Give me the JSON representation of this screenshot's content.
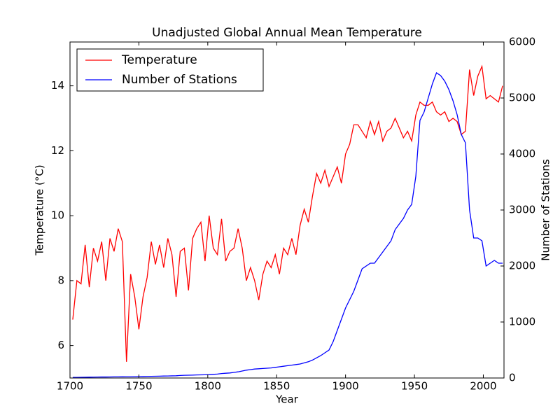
{
  "chart_data": {
    "type": "line",
    "title": "Unadjusted Global Annual Mean Temperature",
    "xlabel": "Year",
    "ylabel": "Temperature (°C)",
    "y2label": "Number of Stations",
    "x": [
      1702,
      1705,
      1708,
      1711,
      1714,
      1717,
      1720,
      1723,
      1726,
      1729,
      1732,
      1735,
      1738,
      1741,
      1744,
      1747,
      1750,
      1753,
      1756,
      1759,
      1762,
      1765,
      1768,
      1771,
      1774,
      1777,
      1780,
      1783,
      1786,
      1789,
      1792,
      1795,
      1798,
      1801,
      1804,
      1807,
      1810,
      1813,
      1816,
      1819,
      1822,
      1825,
      1828,
      1831,
      1834,
      1837,
      1840,
      1843,
      1846,
      1849,
      1852,
      1855,
      1858,
      1861,
      1864,
      1867,
      1870,
      1873,
      1876,
      1879,
      1882,
      1885,
      1888,
      1891,
      1894,
      1897,
      1900,
      1903,
      1906,
      1909,
      1912,
      1915,
      1918,
      1921,
      1924,
      1927,
      1930,
      1933,
      1936,
      1939,
      1942,
      1945,
      1948,
      1951,
      1954,
      1957,
      1960,
      1963,
      1966,
      1969,
      1972,
      1975,
      1978,
      1981,
      1984,
      1987,
      1990,
      1993,
      1996,
      1999,
      2002,
      2005,
      2008,
      2011,
      2014
    ],
    "series": [
      {
        "name": "Temperature",
        "color": "#ff0000",
        "axis": "y",
        "values": [
          6.8,
          8.0,
          7.9,
          9.1,
          7.8,
          9.0,
          8.6,
          9.2,
          8.0,
          9.3,
          8.9,
          9.6,
          9.2,
          5.5,
          8.2,
          7.5,
          6.5,
          7.5,
          8.1,
          9.2,
          8.5,
          9.1,
          8.4,
          9.3,
          8.8,
          7.5,
          8.9,
          9.0,
          7.7,
          9.3,
          9.6,
          9.8,
          8.6,
          10.0,
          9.0,
          8.8,
          9.9,
          8.6,
          8.9,
          9.0,
          9.6,
          9.0,
          8.0,
          8.4,
          8.0,
          7.4,
          8.2,
          8.6,
          8.4,
          8.8,
          8.2,
          9.0,
          8.8,
          9.3,
          8.8,
          9.7,
          10.2,
          9.8,
          10.6,
          11.3,
          11.0,
          11.4,
          10.9,
          11.2,
          11.5,
          11.0,
          11.9,
          12.2,
          12.8,
          12.8,
          12.6,
          12.4,
          12.9,
          12.5,
          12.9,
          12.3,
          12.6,
          12.7,
          13.0,
          12.7,
          12.4,
          12.6,
          12.3,
          13.1,
          13.5,
          13.4,
          13.4,
          13.5,
          13.2,
          13.1,
          13.2,
          12.9,
          13.0,
          12.9,
          12.5,
          12.6,
          14.5,
          13.7,
          14.3,
          14.6,
          13.6,
          13.7,
          13.6,
          13.5,
          14.0
        ]
      },
      {
        "name": "Number of Stations",
        "color": "#0000ff",
        "axis": "y2",
        "values": [
          10,
          10,
          12,
          14,
          15,
          16,
          17,
          18,
          18,
          19,
          20,
          20,
          21,
          22,
          22,
          23,
          25,
          26,
          28,
          30,
          31,
          33,
          35,
          36,
          38,
          40,
          45,
          48,
          50,
          52,
          55,
          56,
          58,
          60,
          65,
          70,
          80,
          85,
          90,
          100,
          110,
          125,
          140,
          150,
          160,
          165,
          170,
          175,
          180,
          190,
          200,
          210,
          220,
          230,
          240,
          250,
          270,
          290,
          320,
          360,
          400,
          450,
          500,
          650,
          850,
          1050,
          1250,
          1400,
          1550,
          1750,
          1950,
          2000,
          2050,
          2050,
          2150,
          2250,
          2350,
          2450,
          2650,
          2750,
          2850,
          3000,
          3100,
          3600,
          4600,
          4750,
          5000,
          5250,
          5450,
          5400,
          5300,
          5150,
          4950,
          4700,
          4350,
          4200,
          3000,
          2500,
          2500,
          2450,
          2000,
          2050,
          2100,
          2050,
          2050
        ]
      }
    ],
    "xlim": [
      1700,
      2015
    ],
    "xticks": [
      1700,
      1750,
      1800,
      1850,
      1900,
      1950,
      2000
    ],
    "ylim": [
      5,
      15.35
    ],
    "yticks": [
      6,
      8,
      10,
      12,
      14
    ],
    "y2lim": [
      0,
      6000
    ],
    "y2ticks": [
      0,
      1000,
      2000,
      3000,
      4000,
      5000,
      6000
    ],
    "legend": "upper left"
  }
}
